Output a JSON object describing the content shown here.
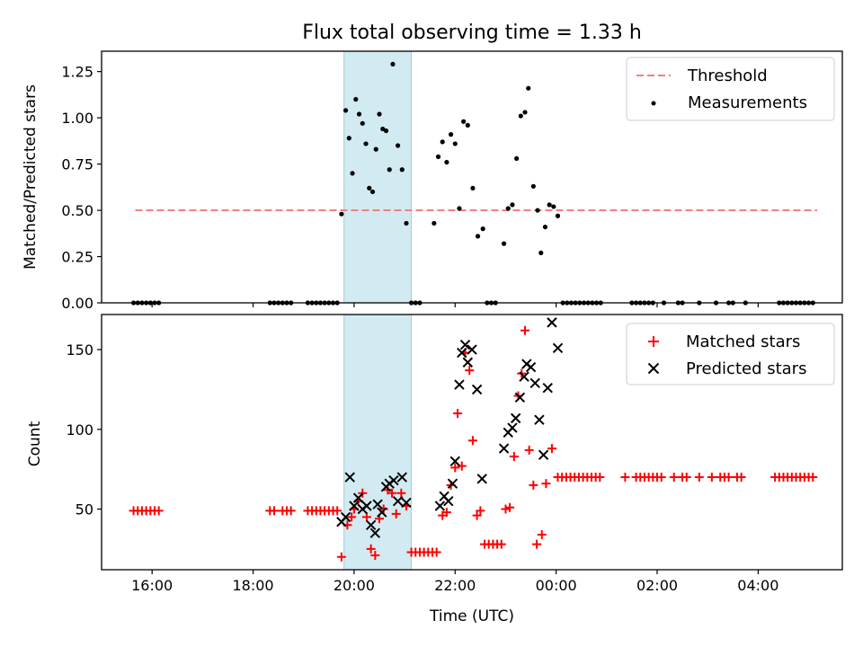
{
  "chart_data": [
    {
      "type": "scatter",
      "title": "Flux total observing time = 1.33 h",
      "xlabel": "",
      "ylabel": "Matched/Predicted stars",
      "xlim": [
        "15:00",
        "05:40"
      ],
      "ylim": [
        0,
        1.36
      ],
      "x_tick_labels": [
        "16:00",
        "18:00",
        "20:00",
        "22:00",
        "00:00",
        "02:00",
        "04:00"
      ],
      "y_tick_labels": [
        "0.00",
        "0.25",
        "0.50",
        "0.75",
        "1.00",
        "1.25"
      ],
      "shaded_interval": [
        "19:48",
        "21:08"
      ],
      "legend_position": "top-right",
      "threshold": {
        "name": "Threshold",
        "y": 0.5,
        "x_range": [
          "15:40",
          "05:10"
        ],
        "color": "#f08080"
      },
      "series": [
        {
          "name": "Measurements",
          "color": "#000000",
          "marker": "dot",
          "points": [
            [
              "15:38",
              0
            ],
            [
              "15:43",
              0
            ],
            [
              "15:48",
              0
            ],
            [
              "15:53",
              0
            ],
            [
              "15:58",
              0
            ],
            [
              "16:03",
              0
            ],
            [
              "16:08",
              0
            ],
            [
              "18:20",
              0
            ],
            [
              "18:25",
              0
            ],
            [
              "18:30",
              0
            ],
            [
              "18:35",
              0
            ],
            [
              "18:40",
              0
            ],
            [
              "18:45",
              0
            ],
            [
              "19:05",
              0
            ],
            [
              "19:10",
              0
            ],
            [
              "19:15",
              0
            ],
            [
              "19:20",
              0
            ],
            [
              "19:25",
              0
            ],
            [
              "19:30",
              0
            ],
            [
              "19:35",
              0
            ],
            [
              "19:40",
              0
            ],
            [
              "19:45",
              0.48
            ],
            [
              "19:50",
              1.04
            ],
            [
              "19:54",
              0.89
            ],
            [
              "19:58",
              0.7
            ],
            [
              "20:02",
              1.1
            ],
            [
              "20:06",
              1.02
            ],
            [
              "20:10",
              0.97
            ],
            [
              "20:14",
              0.86
            ],
            [
              "20:18",
              0.62
            ],
            [
              "20:22",
              0.6
            ],
            [
              "20:26",
              0.83
            ],
            [
              "20:30",
              1.02
            ],
            [
              "20:34",
              0.94
            ],
            [
              "20:38",
              0.93
            ],
            [
              "20:42",
              0.72
            ],
            [
              "20:46",
              1.29
            ],
            [
              "20:52",
              0.85
            ],
            [
              "20:57",
              0.72
            ],
            [
              "21:02",
              0.43
            ],
            [
              "21:08",
              0
            ],
            [
              "21:13",
              0
            ],
            [
              "21:18",
              0
            ],
            [
              "21:35",
              0.43
            ],
            [
              "21:40",
              0.79
            ],
            [
              "21:45",
              0.87
            ],
            [
              "21:50",
              0.76
            ],
            [
              "21:55",
              0.91
            ],
            [
              "22:00",
              0.86
            ],
            [
              "22:05",
              0.51
            ],
            [
              "22:10",
              0.98
            ],
            [
              "22:15",
              0.96
            ],
            [
              "22:21",
              0.62
            ],
            [
              "22:27",
              0.36
            ],
            [
              "22:33",
              0.4
            ],
            [
              "22:38",
              0
            ],
            [
              "22:43",
              0
            ],
            [
              "22:48",
              0
            ],
            [
              "22:58",
              0.32
            ],
            [
              "23:03",
              0.51
            ],
            [
              "23:08",
              0.53
            ],
            [
              "23:13",
              0.78
            ],
            [
              "23:18",
              1.01
            ],
            [
              "23:23",
              1.03
            ],
            [
              "23:27",
              1.16
            ],
            [
              "23:33",
              0.63
            ],
            [
              "23:38",
              0.5
            ],
            [
              "23:42",
              0.27
            ],
            [
              "23:47",
              0.41
            ],
            [
              "23:52",
              0.53
            ],
            [
              "23:57",
              0.52
            ],
            [
              "00:02",
              0.47
            ],
            [
              "00:08",
              0
            ],
            [
              "00:13",
              0
            ],
            [
              "00:18",
              0
            ],
            [
              "00:23",
              0
            ],
            [
              "00:28",
              0
            ],
            [
              "00:33",
              0
            ],
            [
              "00:38",
              0
            ],
            [
              "00:43",
              0
            ],
            [
              "00:48",
              0
            ],
            [
              "00:53",
              0
            ],
            [
              "01:30",
              0
            ],
            [
              "01:35",
              0
            ],
            [
              "01:40",
              0
            ],
            [
              "01:45",
              0
            ],
            [
              "01:50",
              0
            ],
            [
              "01:55",
              0
            ],
            [
              "02:08",
              0
            ],
            [
              "02:25",
              0
            ],
            [
              "02:30",
              0
            ],
            [
              "02:50",
              0
            ],
            [
              "03:10",
              0
            ],
            [
              "03:25",
              0
            ],
            [
              "03:30",
              0
            ],
            [
              "03:45",
              0
            ],
            [
              "04:25",
              0
            ],
            [
              "04:30",
              0
            ],
            [
              "04:35",
              0
            ],
            [
              "04:40",
              0
            ],
            [
              "04:45",
              0
            ],
            [
              "04:50",
              0
            ],
            [
              "04:55",
              0
            ],
            [
              "05:00",
              0
            ],
            [
              "05:05",
              0
            ]
          ]
        }
      ]
    },
    {
      "type": "scatter",
      "title": "",
      "xlabel": "Time (UTC)",
      "ylabel": "Count",
      "xlim": [
        "15:00",
        "05:40"
      ],
      "ylim": [
        12,
        172
      ],
      "x_tick_labels": [
        "16:00",
        "18:00",
        "20:00",
        "22:00",
        "00:00",
        "02:00",
        "04:00"
      ],
      "y_tick_labels": [
        "50",
        "100",
        "150"
      ],
      "shaded_interval": [
        "19:48",
        "21:08"
      ],
      "legend_position": "top-right",
      "series": [
        {
          "name": "Matched stars",
          "color": "#ff0000",
          "marker": "plus",
          "points": [
            [
              "15:38",
              49
            ],
            [
              "15:43",
              49
            ],
            [
              "15:48",
              49
            ],
            [
              "15:53",
              49
            ],
            [
              "15:58",
              49
            ],
            [
              "16:03",
              49
            ],
            [
              "16:08",
              49
            ],
            [
              "18:20",
              49
            ],
            [
              "18:25",
              49
            ],
            [
              "18:35",
              49
            ],
            [
              "18:40",
              49
            ],
            [
              "18:45",
              49
            ],
            [
              "19:05",
              49
            ],
            [
              "19:10",
              49
            ],
            [
              "19:15",
              49
            ],
            [
              "19:20",
              49
            ],
            [
              "19:25",
              49
            ],
            [
              "19:30",
              49
            ],
            [
              "19:35",
              49
            ],
            [
              "19:40",
              49
            ],
            [
              "19:45",
              20
            ],
            [
              "19:52",
              40
            ],
            [
              "19:57",
              45
            ],
            [
              "20:00",
              50
            ],
            [
              "20:05",
              55
            ],
            [
              "20:10",
              60
            ],
            [
              "20:15",
              45
            ],
            [
              "20:20",
              25
            ],
            [
              "20:25",
              21
            ],
            [
              "20:30",
              44
            ],
            [
              "20:35",
              50
            ],
            [
              "20:40",
              62
            ],
            [
              "20:45",
              60
            ],
            [
              "20:50",
              47
            ],
            [
              "20:56",
              60
            ],
            [
              "21:02",
              52
            ],
            [
              "21:08",
              23
            ],
            [
              "21:13",
              23
            ],
            [
              "21:18",
              23
            ],
            [
              "21:23",
              23
            ],
            [
              "21:28",
              23
            ],
            [
              "21:33",
              23
            ],
            [
              "21:38",
              23
            ],
            [
              "21:45",
              46
            ],
            [
              "21:50",
              48
            ],
            [
              "21:55",
              65
            ],
            [
              "22:00",
              76
            ],
            [
              "22:03",
              110
            ],
            [
              "22:08",
              77
            ],
            [
              "22:12",
              148
            ],
            [
              "22:17",
              137
            ],
            [
              "22:21",
              93
            ],
            [
              "22:26",
              46
            ],
            [
              "22:30",
              49
            ],
            [
              "22:35",
              28
            ],
            [
              "22:40",
              28
            ],
            [
              "22:45",
              28
            ],
            [
              "22:50",
              28
            ],
            [
              "22:55",
              28
            ],
            [
              "23:00",
              50
            ],
            [
              "23:05",
              51
            ],
            [
              "23:10",
              83
            ],
            [
              "23:15",
              121
            ],
            [
              "23:19",
              135
            ],
            [
              "23:23",
              162
            ],
            [
              "23:28",
              87
            ],
            [
              "23:33",
              65
            ],
            [
              "23:37",
              28
            ],
            [
              "23:43",
              34
            ],
            [
              "23:48",
              66
            ],
            [
              "23:55",
              88
            ],
            [
              "00:02",
              70
            ],
            [
              "00:07",
              70
            ],
            [
              "00:12",
              70
            ],
            [
              "00:17",
              70
            ],
            [
              "00:22",
              70
            ],
            [
              "00:27",
              70
            ],
            [
              "00:32",
              70
            ],
            [
              "00:37",
              70
            ],
            [
              "00:42",
              70
            ],
            [
              "00:47",
              70
            ],
            [
              "00:52",
              70
            ],
            [
              "01:22",
              70
            ],
            [
              "01:35",
              70
            ],
            [
              "01:40",
              70
            ],
            [
              "01:45",
              70
            ],
            [
              "01:50",
              70
            ],
            [
              "01:55",
              70
            ],
            [
              "02:00",
              70
            ],
            [
              "02:05",
              70
            ],
            [
              "02:20",
              70
            ],
            [
              "02:30",
              70
            ],
            [
              "02:35",
              70
            ],
            [
              "02:50",
              70
            ],
            [
              "03:05",
              70
            ],
            [
              "03:15",
              70
            ],
            [
              "03:20",
              70
            ],
            [
              "03:25",
              70
            ],
            [
              "03:35",
              70
            ],
            [
              "03:40",
              70
            ],
            [
              "04:20",
              70
            ],
            [
              "04:25",
              70
            ],
            [
              "04:30",
              70
            ],
            [
              "04:35",
              70
            ],
            [
              "04:40",
              70
            ],
            [
              "04:45",
              70
            ],
            [
              "04:50",
              70
            ],
            [
              "04:55",
              70
            ],
            [
              "05:00",
              70
            ],
            [
              "05:05",
              70
            ]
          ]
        },
        {
          "name": "Predicted stars",
          "color": "#000000",
          "marker": "cross",
          "points": [
            [
              "19:45",
              42
            ],
            [
              "19:50",
              45
            ],
            [
              "19:55",
              70
            ],
            [
              "20:00",
              52
            ],
            [
              "20:05",
              57
            ],
            [
              "20:10",
              50
            ],
            [
              "20:15",
              52
            ],
            [
              "20:20",
              40
            ],
            [
              "20:25",
              35
            ],
            [
              "20:28",
              53
            ],
            [
              "20:33",
              48
            ],
            [
              "20:38",
              64
            ],
            [
              "20:42",
              66
            ],
            [
              "20:47",
              68
            ],
            [
              "20:52",
              55
            ],
            [
              "20:57",
              70
            ],
            [
              "21:02",
              54
            ],
            [
              "21:42",
              52
            ],
            [
              "21:47",
              58
            ],
            [
              "21:52",
              55
            ],
            [
              "21:57",
              66
            ],
            [
              "22:00",
              80
            ],
            [
              "22:05",
              128
            ],
            [
              "22:08",
              148
            ],
            [
              "22:12",
              153
            ],
            [
              "22:15",
              142
            ],
            [
              "22:20",
              150
            ],
            [
              "22:26",
              125
            ],
            [
              "22:32",
              69
            ],
            [
              "22:58",
              88
            ],
            [
              "23:03",
              98
            ],
            [
              "23:08",
              101
            ],
            [
              "23:12",
              107
            ],
            [
              "23:17",
              120
            ],
            [
              "23:22",
              133
            ],
            [
              "23:25",
              141
            ],
            [
              "23:30",
              139
            ],
            [
              "23:35",
              129
            ],
            [
              "23:40",
              106
            ],
            [
              "23:45",
              84
            ],
            [
              "23:50",
              126
            ],
            [
              "23:55",
              167
            ],
            [
              "00:02",
              151
            ]
          ]
        }
      ]
    }
  ]
}
